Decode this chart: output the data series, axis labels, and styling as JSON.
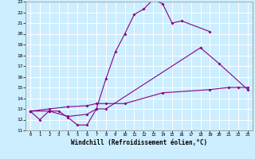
{
  "xlabel": "Windchill (Refroidissement éolien,°C)",
  "xlim": [
    -0.5,
    23.5
  ],
  "ylim": [
    11,
    23
  ],
  "xticks": [
    0,
    1,
    2,
    3,
    4,
    5,
    6,
    7,
    8,
    9,
    10,
    11,
    12,
    13,
    14,
    15,
    16,
    17,
    18,
    19,
    20,
    21,
    22,
    23
  ],
  "yticks": [
    11,
    12,
    13,
    14,
    15,
    16,
    17,
    18,
    19,
    20,
    21,
    22,
    23
  ],
  "bg_color": "#cceeff",
  "line_color": "#880088",
  "series1_x": [
    0,
    1,
    2,
    3,
    4,
    5,
    6,
    7,
    8,
    9,
    10,
    11,
    12,
    13,
    14,
    15,
    16,
    19
  ],
  "series1_y": [
    12.8,
    12.0,
    12.8,
    12.8,
    12.2,
    11.5,
    11.5,
    13.0,
    15.8,
    18.3,
    20.0,
    21.8,
    22.3,
    23.2,
    22.8,
    21.0,
    21.2,
    20.2
  ],
  "series2_x": [
    0,
    2,
    4,
    6,
    7,
    8,
    18,
    20,
    23
  ],
  "series2_y": [
    12.8,
    12.8,
    12.3,
    12.5,
    13.0,
    13.0,
    18.7,
    17.2,
    14.8
  ],
  "series3_x": [
    0,
    2,
    4,
    6,
    7,
    8,
    10,
    14,
    19,
    21,
    22,
    23
  ],
  "series3_y": [
    12.8,
    13.0,
    13.2,
    13.3,
    13.5,
    13.5,
    13.5,
    14.5,
    14.8,
    15.0,
    15.0,
    15.0
  ]
}
